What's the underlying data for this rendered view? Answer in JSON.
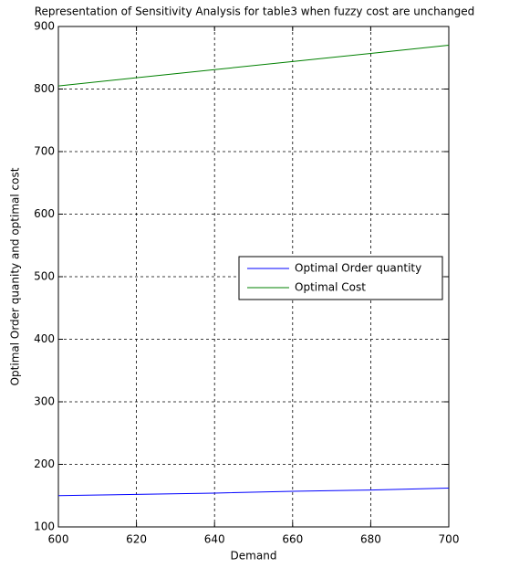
{
  "chart_data": {
    "type": "line",
    "title": "Representation of Sensitivity Analysis for table3 when fuzzy cost are unchanged",
    "x_label": "Demand",
    "y_label": "Optimal Order quanity and optimal cost",
    "x": [
      600,
      620,
      640,
      660,
      680,
      700
    ],
    "series": [
      {
        "name": "Optimal Order quantity",
        "color": "#0000ff",
        "values": [
          150,
          152,
          154,
          157,
          159,
          162
        ]
      },
      {
        "name": "Optimal Cost",
        "color": "#008000",
        "values": [
          805,
          818,
          831,
          844,
          857,
          870
        ]
      }
    ],
    "xlim": [
      600,
      700
    ],
    "xticks": [
      600,
      620,
      640,
      660,
      680,
      700
    ],
    "ylim": [
      100,
      900
    ],
    "yticks": [
      100,
      200,
      300,
      400,
      500,
      600,
      700,
      800,
      900
    ],
    "grid": true,
    "legend_position": "right"
  }
}
